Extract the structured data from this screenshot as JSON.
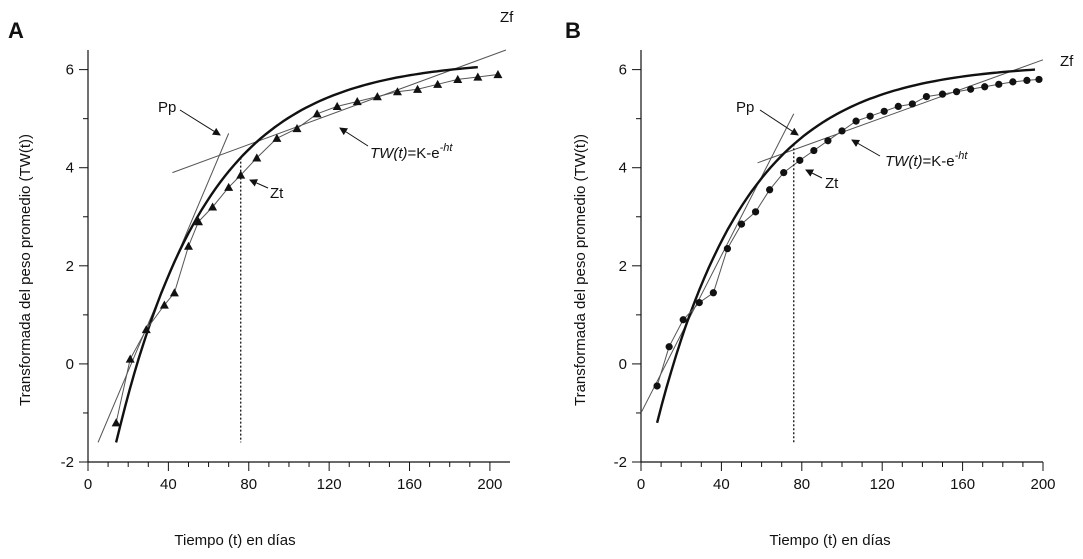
{
  "chart_data": [
    {
      "panel": "A",
      "type": "line",
      "xlabel": "Tiempo (t) en días",
      "ylabel": "Transformada del peso promedio (TW(t))",
      "xlim": [
        0,
        210
      ],
      "ylim": [
        -2,
        6.4
      ],
      "x_ticks": [
        0,
        40,
        80,
        120,
        160,
        200
      ],
      "y_ticks": [
        -2,
        0,
        2,
        4,
        6
      ],
      "series": [
        {
          "marker": "triangle",
          "x": [
            14,
            21,
            29,
            38,
            43,
            50,
            55,
            62,
            70,
            76,
            84,
            94,
            104,
            114,
            124,
            134,
            144,
            154,
            164,
            174,
            184,
            194,
            204
          ],
          "y": [
            -1.2,
            0.1,
            0.7,
            1.2,
            1.45,
            2.4,
            2.9,
            3.2,
            3.6,
            3.85,
            4.2,
            4.6,
            4.8,
            5.1,
            5.25,
            5.35,
            5.45,
            5.55,
            5.6,
            5.7,
            5.8,
            5.85,
            5.9
          ]
        }
      ],
      "fitted_curve": {
        "x_start": 14,
        "x_end": 194,
        "y_start": -1.6,
        "y_end": 6.05
      },
      "tangent_lines": [
        {
          "x1": 5,
          "y1": -1.6,
          "x2": 70,
          "y2": 4.7
        },
        {
          "x1": 42,
          "y1": 3.9,
          "x2": 208,
          "y2": 6.4
        }
      ],
      "vertical_line_x": 76,
      "labels": {
        "pp": "Pp",
        "zt": "Zt",
        "zf": "Zf",
        "model_prefix": "TW(t)",
        "model_mid": "=K-e",
        "model_exp": "-ht"
      }
    },
    {
      "panel": "B",
      "type": "line",
      "xlabel": "Tiempo (t) en días",
      "ylabel": "Transformada del peso promedio (TW(t))",
      "xlim": [
        0,
        200
      ],
      "ylim": [
        -2,
        6.4
      ],
      "x_ticks": [
        0,
        40,
        80,
        120,
        160,
        200
      ],
      "y_ticks": [
        -2,
        0,
        2,
        4,
        6
      ],
      "series": [
        {
          "marker": "circle",
          "x": [
            8,
            14,
            21,
            29,
            36,
            43,
            50,
            57,
            64,
            71,
            79,
            86,
            93,
            100,
            107,
            114,
            121,
            128,
            135,
            142,
            150,
            157,
            164,
            171,
            178,
            185,
            192,
            198
          ],
          "y": [
            -0.45,
            0.35,
            0.9,
            1.25,
            1.45,
            2.35,
            2.85,
            3.1,
            3.55,
            3.9,
            4.15,
            4.35,
            4.55,
            4.75,
            4.95,
            5.05,
            5.15,
            5.25,
            5.3,
            5.45,
            5.5,
            5.55,
            5.6,
            5.65,
            5.7,
            5.75,
            5.78,
            5.8
          ]
        }
      ],
      "fitted_curve": {
        "x_start": 8,
        "x_end": 196,
        "y_start": -1.2,
        "y_end": 6.0
      },
      "tangent_lines": [
        {
          "x1": 0,
          "y1": -1.0,
          "x2": 76,
          "y2": 5.1
        },
        {
          "x1": 58,
          "y1": 4.1,
          "x2": 200,
          "y2": 6.2
        }
      ],
      "vertical_line_x": 76,
      "labels": {
        "pp": "Pp",
        "zt": "Zt",
        "zf": "Zf",
        "model_prefix": "TW(t)",
        "model_mid": "=K-e",
        "model_exp": "-ht"
      }
    }
  ]
}
